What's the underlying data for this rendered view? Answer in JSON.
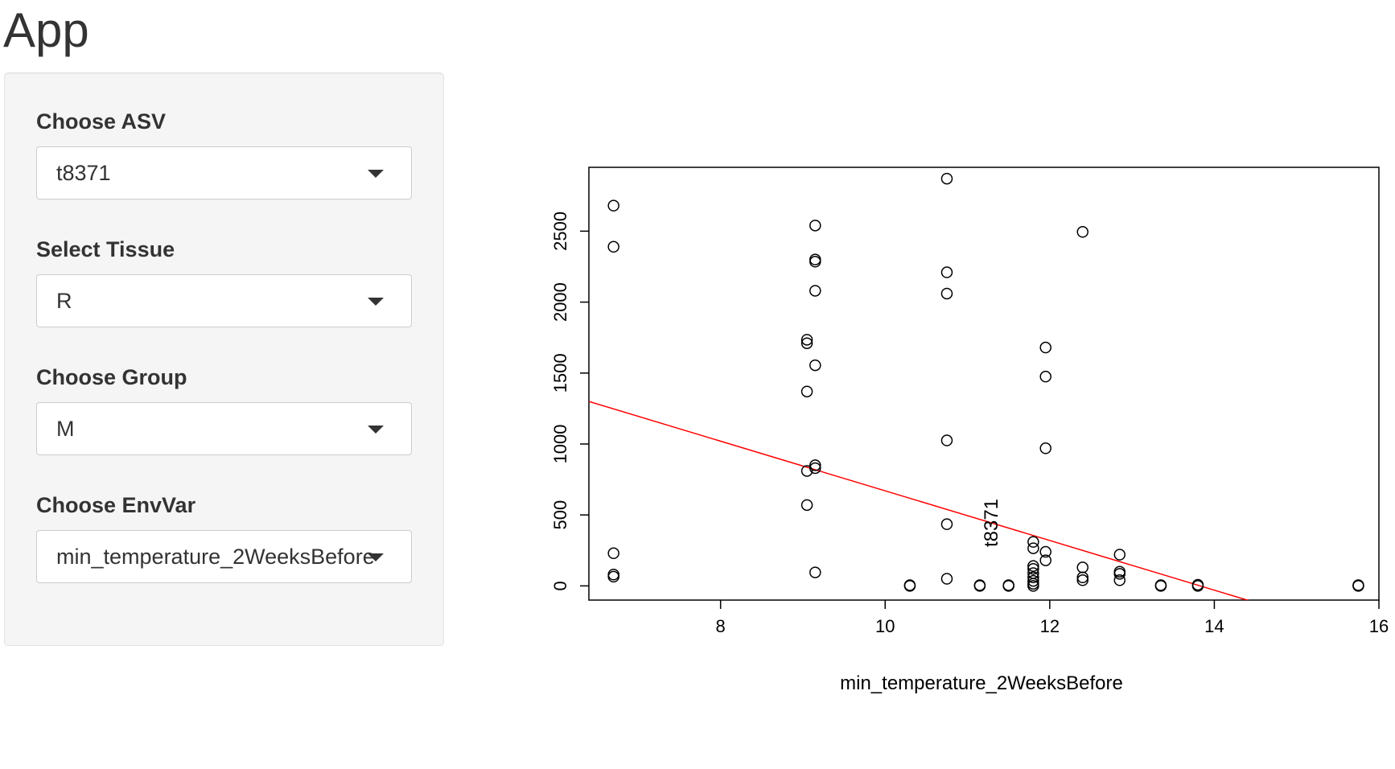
{
  "app": {
    "title": "App"
  },
  "sidebar": {
    "controls": [
      {
        "label": "Choose ASV",
        "value": "t8371"
      },
      {
        "label": "Select Tissue",
        "value": "R"
      },
      {
        "label": "Choose Group",
        "value": "M"
      },
      {
        "label": "Choose EnvVar",
        "value": "min_temperature_2WeeksBefore"
      }
    ]
  },
  "chart_data": {
    "type": "scatter",
    "xlabel": "min_temperature_2WeeksBefore",
    "ylabel": "t8371",
    "xlim": [
      6.4,
      16.0
    ],
    "ylim": [
      -100,
      2950
    ],
    "xticks": [
      8,
      10,
      12,
      14,
      16
    ],
    "yticks": [
      0,
      500,
      1000,
      1500,
      2000,
      2500
    ],
    "grid": false,
    "point_color": "#000000",
    "line_color": "#ff0000",
    "fit_line": {
      "intercept": 2420,
      "slope": -175
    },
    "points": [
      {
        "x": 6.7,
        "y": 2680
      },
      {
        "x": 6.7,
        "y": 2390
      },
      {
        "x": 6.7,
        "y": 230
      },
      {
        "x": 6.7,
        "y": 80
      },
      {
        "x": 6.7,
        "y": 65
      },
      {
        "x": 9.05,
        "y": 1735
      },
      {
        "x": 9.05,
        "y": 1710
      },
      {
        "x": 9.05,
        "y": 1370
      },
      {
        "x": 9.05,
        "y": 810
      },
      {
        "x": 9.05,
        "y": 570
      },
      {
        "x": 9.15,
        "y": 2540
      },
      {
        "x": 9.15,
        "y": 2300
      },
      {
        "x": 9.15,
        "y": 2285
      },
      {
        "x": 9.15,
        "y": 2080
      },
      {
        "x": 9.15,
        "y": 1555
      },
      {
        "x": 9.15,
        "y": 850
      },
      {
        "x": 9.15,
        "y": 830
      },
      {
        "x": 9.15,
        "y": 95
      },
      {
        "x": 10.3,
        "y": 0
      },
      {
        "x": 10.3,
        "y": 5
      },
      {
        "x": 10.75,
        "y": 2870
      },
      {
        "x": 10.75,
        "y": 2210
      },
      {
        "x": 10.75,
        "y": 2060
      },
      {
        "x": 10.75,
        "y": 1025
      },
      {
        "x": 10.75,
        "y": 435
      },
      {
        "x": 10.75,
        "y": 50
      },
      {
        "x": 11.15,
        "y": 0
      },
      {
        "x": 11.15,
        "y": 5
      },
      {
        "x": 11.5,
        "y": 0
      },
      {
        "x": 11.5,
        "y": 5
      },
      {
        "x": 11.8,
        "y": 310
      },
      {
        "x": 11.8,
        "y": 265
      },
      {
        "x": 11.8,
        "y": 140
      },
      {
        "x": 11.8,
        "y": 120
      },
      {
        "x": 11.8,
        "y": 90
      },
      {
        "x": 11.8,
        "y": 60
      },
      {
        "x": 11.8,
        "y": 35
      },
      {
        "x": 11.8,
        "y": 15
      },
      {
        "x": 11.8,
        "y": 0
      },
      {
        "x": 11.95,
        "y": 1680
      },
      {
        "x": 11.95,
        "y": 1475
      },
      {
        "x": 11.95,
        "y": 970
      },
      {
        "x": 11.95,
        "y": 240
      },
      {
        "x": 11.95,
        "y": 180
      },
      {
        "x": 12.4,
        "y": 2495
      },
      {
        "x": 12.4,
        "y": 130
      },
      {
        "x": 12.4,
        "y": 60
      },
      {
        "x": 12.4,
        "y": 40
      },
      {
        "x": 12.85,
        "y": 220
      },
      {
        "x": 12.85,
        "y": 100
      },
      {
        "x": 12.85,
        "y": 85
      },
      {
        "x": 12.85,
        "y": 40
      },
      {
        "x": 13.35,
        "y": 0
      },
      {
        "x": 13.35,
        "y": 5
      },
      {
        "x": 13.8,
        "y": 0
      },
      {
        "x": 13.8,
        "y": 8
      },
      {
        "x": 15.75,
        "y": 0
      },
      {
        "x": 15.75,
        "y": 5
      }
    ]
  }
}
